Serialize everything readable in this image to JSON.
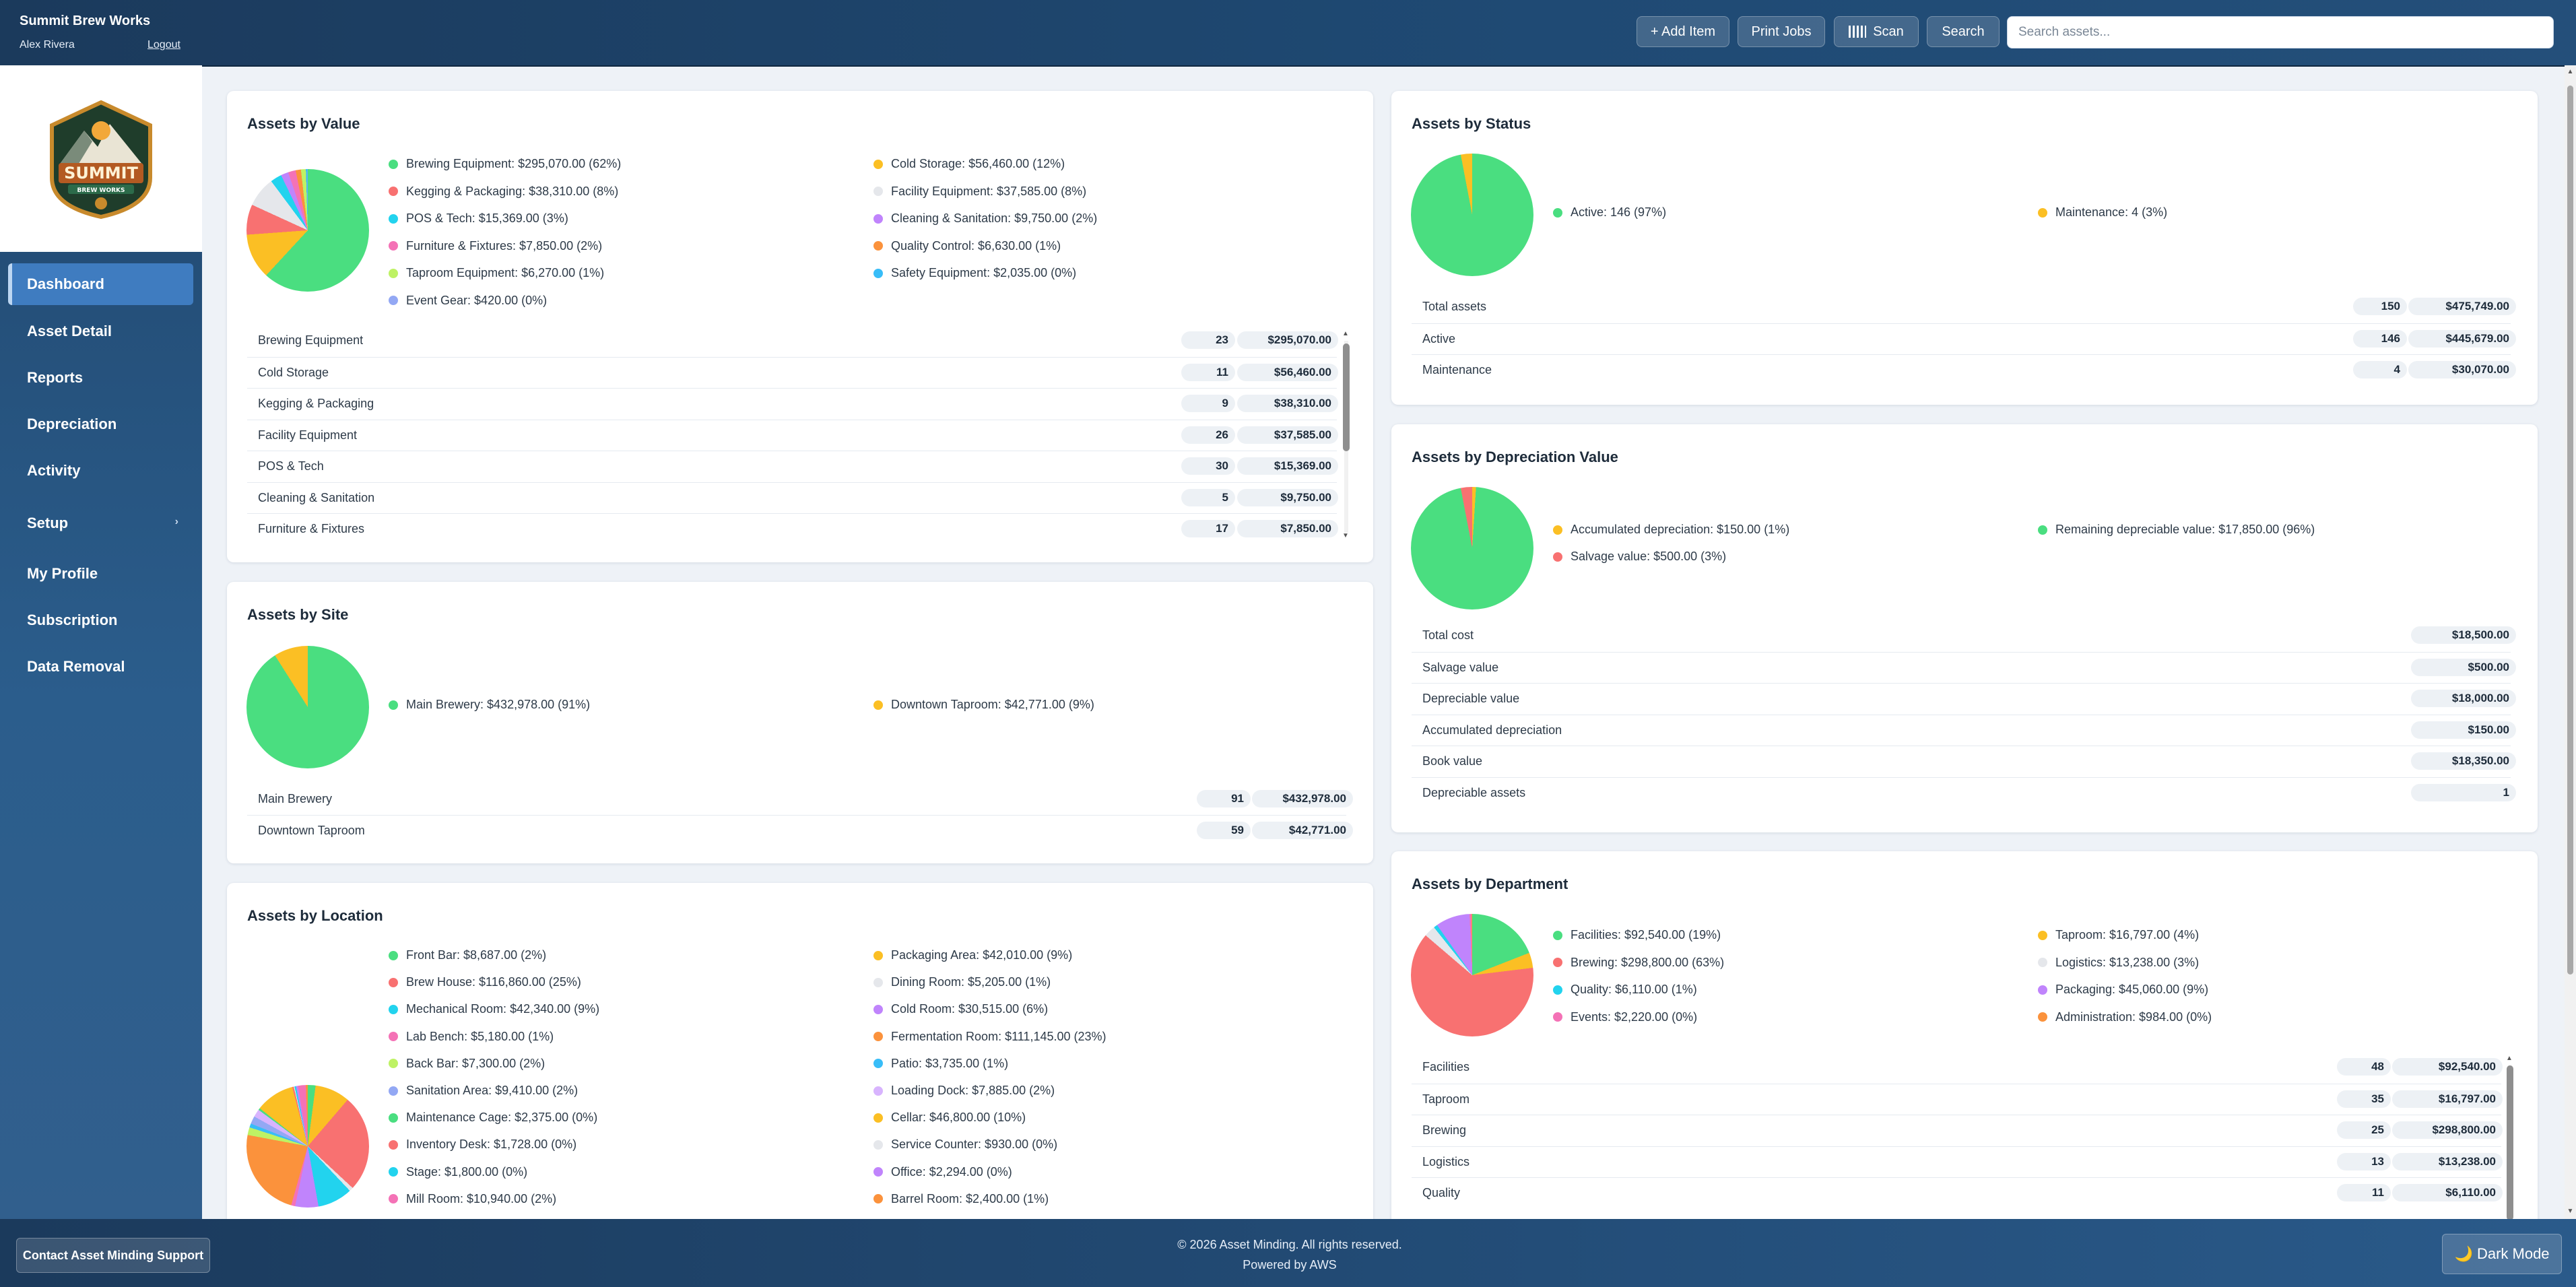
{
  "topbar": {
    "company": "Summit Brew Works",
    "user": "Alex Rivera",
    "logout": "Logout",
    "add_item": "+ Add Item",
    "print_jobs": "Print Jobs",
    "scan": "Scan",
    "search": "Search",
    "search_placeholder": "Search assets..."
  },
  "logo": {
    "word": "SUMMIT",
    "sub": "BREW WORKS"
  },
  "sidebar": {
    "items": [
      {
        "label": "Dashboard"
      },
      {
        "label": "Asset Detail"
      },
      {
        "label": "Reports"
      },
      {
        "label": "Depreciation"
      },
      {
        "label": "Activity"
      },
      {
        "label": "Setup"
      },
      {
        "label": "My Profile"
      },
      {
        "label": "Subscription"
      },
      {
        "label": "Data Removal"
      }
    ]
  },
  "footer": {
    "support": "Contact Asset Minding Support",
    "copyright": "© 2026 Asset Minding. All rights reserved.",
    "powered": "Powered by AWS",
    "dark_mode": "🌙 Dark Mode"
  },
  "colors": {
    "green": "#4ade80",
    "red": "#f87171",
    "cyan": "#22d3ee",
    "pink": "#f472b6",
    "lime": "#bef264",
    "periwinkle": "#93a8f4",
    "amber": "#fbbf24",
    "lightgray": "#e5e7eb",
    "purple": "#c084fc",
    "orange": "#fb923c",
    "sky": "#38bdf8",
    "lavender": "#d8b4fe"
  },
  "value_card": {
    "title": "Assets by Value",
    "legend": [
      {
        "label": "Brewing Equipment: $295,070.00 (62%)",
        "color": "#4ade80",
        "pct": 62
      },
      {
        "label": "Cold Storage: $56,460.00 (12%)",
        "color": "#fbbf24",
        "pct": 12
      },
      {
        "label": "Kegging & Packaging: $38,310.00 (8%)",
        "color": "#f87171",
        "pct": 8
      },
      {
        "label": "Facility Equipment: $37,585.00 (8%)",
        "color": "#e5e7eb",
        "pct": 8
      },
      {
        "label": "POS & Tech: $15,369.00 (3%)",
        "color": "#22d3ee",
        "pct": 3
      },
      {
        "label": "Cleaning & Sanitation: $9,750.00 (2%)",
        "color": "#c084fc",
        "pct": 2
      },
      {
        "label": "Furniture & Fixtures: $7,850.00 (2%)",
        "color": "#f472b6",
        "pct": 2
      },
      {
        "label": "Quality Control: $6,630.00 (1%)",
        "color": "#fb923c",
        "pct": 1.4
      },
      {
        "label": "Taproom Equipment: $6,270.00 (1%)",
        "color": "#bef264",
        "pct": 1.3
      },
      {
        "label": "Safety Equipment: $2,035.00 (0%)",
        "color": "#38bdf8",
        "pct": 0.4
      },
      {
        "label": "Event Gear: $420.00 (0%)",
        "color": "#93a8f4",
        "pct": 0.1
      }
    ],
    "rows": [
      {
        "label": "Brewing Equipment",
        "count": "23",
        "value": "$295,070.00"
      },
      {
        "label": "Cold Storage",
        "count": "11",
        "value": "$56,460.00"
      },
      {
        "label": "Kegging & Packaging",
        "count": "9",
        "value": "$38,310.00"
      },
      {
        "label": "Facility Equipment",
        "count": "26",
        "value": "$37,585.00"
      },
      {
        "label": "POS & Tech",
        "count": "30",
        "value": "$15,369.00"
      },
      {
        "label": "Cleaning & Sanitation",
        "count": "5",
        "value": "$9,750.00"
      },
      {
        "label": "Furniture & Fixtures",
        "count": "17",
        "value": "$7,850.00"
      }
    ]
  },
  "status_card": {
    "title": "Assets by Status",
    "legend": [
      {
        "label": "Active: 146 (97%)",
        "color": "#4ade80",
        "pct": 97
      },
      {
        "label": "Maintenance: 4 (3%)",
        "color": "#fbbf24",
        "pct": 3
      }
    ],
    "rows": [
      {
        "label": "Total assets",
        "count": "150",
        "value": "$475,749.00"
      },
      {
        "label": "Active",
        "count": "146",
        "value": "$445,679.00"
      },
      {
        "label": "Maintenance",
        "count": "4",
        "value": "$30,070.00"
      }
    ]
  },
  "depreciation_card": {
    "title": "Assets by Depreciation Value",
    "legend": [
      {
        "label": "Accumulated depreciation: $150.00 (1%)",
        "color": "#fbbf24",
        "pct": 1
      },
      {
        "label": "Remaining depreciable value: $17,850.00 (96%)",
        "color": "#4ade80",
        "pct": 96
      },
      {
        "label": "Salvage value: $500.00 (3%)",
        "color": "#f87171",
        "pct": 3
      }
    ],
    "rows": [
      {
        "label": "Total cost",
        "value": "$18,500.00"
      },
      {
        "label": "Salvage value",
        "value": "$500.00"
      },
      {
        "label": "Depreciable value",
        "value": "$18,000.00"
      },
      {
        "label": "Accumulated depreciation",
        "value": "$150.00"
      },
      {
        "label": "Book value",
        "value": "$18,350.00"
      },
      {
        "label": "Depreciable assets",
        "value": "1"
      }
    ]
  },
  "site_card": {
    "title": "Assets by Site",
    "legend": [
      {
        "label": "Main Brewery: $432,978.00 (91%)",
        "color": "#4ade80",
        "pct": 91
      },
      {
        "label": "Downtown Taproom: $42,771.00 (9%)",
        "color": "#fbbf24",
        "pct": 9
      }
    ],
    "rows": [
      {
        "label": "Main Brewery",
        "count": "91",
        "value": "$432,978.00"
      },
      {
        "label": "Downtown Taproom",
        "count": "59",
        "value": "$42,771.00"
      }
    ]
  },
  "department_card": {
    "title": "Assets by Department",
    "legend": [
      {
        "label": "Facilities: $92,540.00 (19%)",
        "color": "#4ade80",
        "pct": 19
      },
      {
        "label": "Taproom: $16,797.00 (4%)",
        "color": "#fbbf24",
        "pct": 4
      },
      {
        "label": "Brewing: $298,800.00 (63%)",
        "color": "#f87171",
        "pct": 63
      },
      {
        "label": "Logistics: $13,238.00 (3%)",
        "color": "#e5e7eb",
        "pct": 3
      },
      {
        "label": "Quality: $6,110.00 (1%)",
        "color": "#22d3ee",
        "pct": 1
      },
      {
        "label": "Packaging: $45,060.00 (9%)",
        "color": "#c084fc",
        "pct": 9
      },
      {
        "label": "Events: $2,220.00 (0%)",
        "color": "#f472b6",
        "pct": 0.5
      },
      {
        "label": "Administration: $984.00 (0%)",
        "color": "#fb923c",
        "pct": 0.2
      }
    ],
    "rows": [
      {
        "label": "Facilities",
        "count": "48",
        "value": "$92,540.00"
      },
      {
        "label": "Taproom",
        "count": "35",
        "value": "$16,797.00"
      },
      {
        "label": "Brewing",
        "count": "25",
        "value": "$298,800.00"
      },
      {
        "label": "Logistics",
        "count": "13",
        "value": "$13,238.00"
      },
      {
        "label": "Quality",
        "count": "11",
        "value": "$6,110.00"
      }
    ]
  },
  "location_card": {
    "title": "Assets by Location",
    "legend": [
      {
        "label": "Front Bar: $8,687.00 (2%)",
        "color": "#4ade80",
        "pct": 2
      },
      {
        "label": "Packaging Area: $42,010.00 (9%)",
        "color": "#fbbf24",
        "pct": 9
      },
      {
        "label": "Brew House: $116,860.00 (25%)",
        "color": "#f87171",
        "pct": 25
      },
      {
        "label": "Dining Room: $5,205.00 (1%)",
        "color": "#e5e7eb",
        "pct": 1
      },
      {
        "label": "Mechanical Room: $42,340.00 (9%)",
        "color": "#22d3ee",
        "pct": 9
      },
      {
        "label": "Cold Room: $30,515.00 (6%)",
        "color": "#c084fc",
        "pct": 6
      },
      {
        "label": "Lab Bench: $5,180.00 (1%)",
        "color": "#f472b6",
        "pct": 1
      },
      {
        "label": "Fermentation Room: $111,145.00 (23%)",
        "color": "#fb923c",
        "pct": 23
      },
      {
        "label": "Back Bar: $7,300.00 (2%)",
        "color": "#bef264",
        "pct": 2
      },
      {
        "label": "Patio: $3,735.00 (1%)",
        "color": "#38bdf8",
        "pct": 1
      },
      {
        "label": "Sanitation Area: $9,410.00 (2%)",
        "color": "#93a8f4",
        "pct": 2
      },
      {
        "label": "Loading Dock: $7,885.00 (2%)",
        "color": "#d8b4fe",
        "pct": 2
      },
      {
        "label": "Maintenance Cage: $2,375.00 (0%)",
        "color": "#4ade80",
        "pct": 0.5
      },
      {
        "label": "Cellar: $46,800.00 (10%)",
        "color": "#fbbf24",
        "pct": 10
      },
      {
        "label": "Inventory Desk: $1,728.00 (0%)",
        "color": "#f87171",
        "pct": 0.4
      },
      {
        "label": "Service Counter: $930.00 (0%)",
        "color": "#e5e7eb",
        "pct": 0.2
      },
      {
        "label": "Stage: $1,800.00 (0%)",
        "color": "#22d3ee",
        "pct": 0.4
      },
      {
        "label": "Office: $2,294.00 (0%)",
        "color": "#c084fc",
        "pct": 0.5
      },
      {
        "label": "Mill Room: $10,940.00 (2%)",
        "color": "#f472b6",
        "pct": 2
      },
      {
        "label": "Barrel Room: $2,400.00 (1%)",
        "color": "#fb923c",
        "pct": 0.5
      }
    ]
  }
}
